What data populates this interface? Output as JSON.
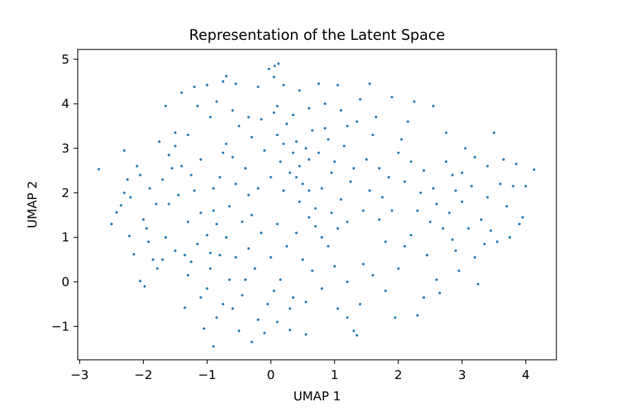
{
  "chart_data": {
    "type": "scatter",
    "title": "Representation of the Latent Space",
    "xlabel": "UMAP 1",
    "ylabel": "UMAP 2",
    "xlim": [
      -3.03,
      4.48
    ],
    "ylim": [
      -1.75,
      5.22
    ],
    "xticks": [
      -3,
      -2,
      -1,
      0,
      1,
      2,
      3,
      4
    ],
    "yticks": [
      -1,
      0,
      1,
      2,
      3,
      4,
      5
    ],
    "xtick_labels": [
      "−3",
      "−2",
      "−1",
      "0",
      "1",
      "2",
      "3",
      "4"
    ],
    "ytick_labels": [
      "−1",
      "0",
      "1",
      "2",
      "3",
      "4",
      "5"
    ],
    "grid": false,
    "legend": "none",
    "marker_color": "#1f77b4",
    "points": [
      [
        -2.7,
        2.53
      ],
      [
        4.13,
        2.52
      ],
      [
        0.12,
        4.9
      ],
      [
        0.06,
        4.85
      ],
      [
        -0.03,
        4.78
      ],
      [
        -0.7,
        4.62
      ],
      [
        -0.9,
        1.6
      ],
      [
        -0.9,
        -1.45
      ],
      [
        -2.5,
        1.3
      ],
      [
        -2.42,
        1.56
      ],
      [
        -2.35,
        1.72
      ],
      [
        -2.3,
        2.0
      ],
      [
        -2.25,
        2.3
      ],
      [
        -2.22,
        1.03
      ],
      [
        -2.15,
        0.62
      ],
      [
        -2.05,
        0.02
      ],
      [
        -1.98,
        -0.1
      ],
      [
        -2.0,
        1.4
      ],
      [
        -1.92,
        0.9
      ],
      [
        -1.85,
        0.5
      ],
      [
        -1.78,
        0.3
      ],
      [
        -1.7,
        0.5
      ],
      [
        -1.65,
        3.95
      ],
      [
        -1.6,
        1.75
      ],
      [
        -1.5,
        3.35
      ],
      [
        -1.4,
        4.25
      ],
      [
        -1.35,
        0.6
      ],
      [
        -1.3,
        0.15
      ],
      [
        -1.35,
        -0.58
      ],
      [
        -1.2,
        4.38
      ],
      [
        -1.15,
        0.85
      ],
      [
        -1.1,
        -0.35
      ],
      [
        -1.05,
        -1.05
      ],
      [
        -1.0,
        4.42
      ],
      [
        -0.95,
        0.3
      ],
      [
        -0.85,
        -0.8
      ],
      [
        -0.8,
        0.6
      ],
      [
        -0.75,
        4.5
      ],
      [
        -0.6,
        -0.6
      ],
      [
        -0.55,
        4.45
      ],
      [
        -0.5,
        -1.1
      ],
      [
        -0.4,
        0.05
      ],
      [
        -0.3,
        -1.35
      ],
      [
        -0.2,
        4.38
      ],
      [
        -0.1,
        -1.15
      ],
      [
        0.05,
        4.6
      ],
      [
        0.1,
        -0.9
      ],
      [
        0.2,
        4.42
      ],
      [
        0.3,
        -1.08
      ],
      [
        0.45,
        4.3
      ],
      [
        0.55,
        -1.18
      ],
      [
        0.75,
        4.45
      ],
      [
        0.9,
        0.8
      ],
      [
        1.05,
        4.42
      ],
      [
        1.2,
        -0.8
      ],
      [
        1.3,
        -1.1
      ],
      [
        1.35,
        -1.2
      ],
      [
        1.4,
        4.1
      ],
      [
        1.45,
        0.4
      ],
      [
        1.55,
        4.45
      ],
      [
        1.65,
        3.7
      ],
      [
        1.7,
        1.4
      ],
      [
        1.8,
        -0.2
      ],
      [
        1.9,
        4.15
      ],
      [
        1.95,
        -0.8
      ],
      [
        2.0,
        2.9
      ],
      [
        2.1,
        0.8
      ],
      [
        2.15,
        3.6
      ],
      [
        2.25,
        4.05
      ],
      [
        2.3,
        -0.75
      ],
      [
        2.4,
        2.5
      ],
      [
        2.45,
        0.6
      ],
      [
        2.55,
        3.95
      ],
      [
        2.6,
        1.75
      ],
      [
        2.65,
        -0.25
      ],
      [
        2.75,
        3.35
      ],
      [
        2.85,
        2.4
      ],
      [
        2.9,
        0.7
      ],
      [
        3.0,
        1.8
      ],
      [
        3.05,
        3.0
      ],
      [
        3.15,
        2.15
      ],
      [
        3.25,
        -0.05
      ],
      [
        3.3,
        1.4
      ],
      [
        3.4,
        2.6
      ],
      [
        3.45,
        1.15
      ],
      [
        3.5,
        3.35
      ],
      [
        3.55,
        0.9
      ],
      [
        3.6,
        2.2
      ],
      [
        3.65,
        2.75
      ],
      [
        3.7,
        1.7
      ],
      [
        3.75,
        1.0
      ],
      [
        3.8,
        2.15
      ],
      [
        3.85,
        2.65
      ],
      [
        3.9,
        1.3
      ],
      [
        3.95,
        1.45
      ],
      [
        4.0,
        2.15
      ],
      [
        2.95,
        0.25
      ],
      [
        3.2,
        0.55
      ],
      [
        2.35,
        2.0
      ],
      [
        2.5,
        1.35
      ],
      [
        2.7,
        1.2
      ],
      [
        2.85,
        0.95
      ],
      [
        2.2,
        2.7
      ],
      [
        2.05,
        3.2
      ],
      [
        1.85,
        2.35
      ],
      [
        1.75,
        1.9
      ],
      [
        1.6,
        3.3
      ],
      [
        1.5,
        2.75
      ],
      [
        1.45,
        1.6
      ],
      [
        1.25,
        2.25
      ],
      [
        1.15,
        3.05
      ],
      [
        1.05,
        1.2
      ],
      [
        0.95,
        2.45
      ],
      [
        0.85,
        3.45
      ],
      [
        0.7,
        1.65
      ],
      [
        0.65,
        0.25
      ],
      [
        0.6,
        2.05
      ],
      [
        0.5,
        0.5
      ],
      [
        0.4,
        1.1
      ],
      [
        0.35,
        -0.35
      ],
      [
        0.25,
        0.8
      ],
      [
        0.15,
        0.05
      ],
      [
        0.0,
        0.55
      ],
      [
        -0.05,
        -0.5
      ],
      [
        -0.15,
        1.1
      ],
      [
        -0.25,
        0.3
      ],
      [
        -0.35,
        0.75
      ],
      [
        -0.45,
        1.35
      ],
      [
        -0.55,
        0.55
      ],
      [
        -0.65,
        0.05
      ],
      [
        -0.7,
        1.0
      ],
      [
        -0.85,
        1.3
      ],
      [
        -1.0,
        1.05
      ],
      [
        -1.1,
        1.55
      ],
      [
        -1.2,
        2.05
      ],
      [
        -1.3,
        1.35
      ],
      [
        -1.45,
        1.95
      ],
      [
        -1.55,
        2.55
      ],
      [
        -1.7,
        2.3
      ],
      [
        -1.8,
        1.75
      ],
      [
        -1.9,
        2.1
      ],
      [
        -2.1,
        2.6
      ],
      [
        -2.2,
        1.9
      ],
      [
        -1.75,
        3.15
      ],
      [
        -1.6,
        2.85
      ],
      [
        -1.3,
        3.3
      ],
      [
        -1.1,
        2.75
      ],
      [
        -0.95,
        3.7
      ],
      [
        -0.8,
        2.35
      ],
      [
        -0.7,
        3.1
      ],
      [
        -0.6,
        2.8
      ],
      [
        -0.5,
        3.5
      ],
      [
        -0.4,
        2.55
      ],
      [
        -0.3,
        3.25
      ],
      [
        -0.2,
        2.1
      ],
      [
        -0.1,
        2.95
      ],
      [
        0.0,
        2.35
      ],
      [
        0.1,
        3.3
      ],
      [
        0.15,
        2.7
      ],
      [
        0.2,
        2.05
      ],
      [
        0.25,
        3.55
      ],
      [
        0.3,
        2.45
      ],
      [
        0.35,
        2.9
      ],
      [
        0.4,
        3.15
      ],
      [
        0.45,
        2.6
      ],
      [
        0.5,
        2.2
      ],
      [
        0.55,
        3.0
      ],
      [
        0.6,
        2.75
      ],
      [
        0.65,
        3.4
      ],
      [
        0.75,
        2.9
      ],
      [
        0.8,
        2.1
      ],
      [
        0.9,
        3.2
      ],
      [
        1.0,
        2.7
      ],
      [
        1.1,
        1.85
      ],
      [
        1.2,
        3.5
      ],
      [
        1.3,
        2.55
      ],
      [
        -1.4,
        2.6
      ],
      [
        -1.5,
        3.05
      ],
      [
        -1.25,
        2.4
      ],
      [
        -0.9,
        2.1
      ],
      [
        -0.75,
        2.9
      ],
      [
        -0.55,
        2.2
      ],
      [
        -0.35,
        1.95
      ],
      [
        -0.15,
        3.65
      ],
      [
        0.05,
        3.8
      ],
      [
        0.2,
        3.1
      ],
      [
        0.4,
        2.35
      ],
      [
        0.6,
        1.45
      ],
      [
        0.8,
        1.0
      ],
      [
        1.0,
        0.35
      ],
      [
        1.2,
        0.0
      ],
      [
        1.4,
        -0.5
      ],
      [
        1.6,
        0.15
      ],
      [
        1.8,
        0.9
      ],
      [
        2.0,
        0.3
      ],
      [
        2.2,
        1.05
      ],
      [
        2.4,
        -0.35
      ],
      [
        2.6,
        0.05
      ],
      [
        2.8,
        1.55
      ],
      [
        3.0,
        2.45
      ],
      [
        3.2,
        2.8
      ],
      [
        3.4,
        1.9
      ],
      [
        -1.0,
        -0.15
      ],
      [
        -0.75,
        -0.5
      ],
      [
        -0.45,
        -0.3
      ],
      [
        -0.2,
        -0.85
      ],
      [
        0.05,
        -0.2
      ],
      [
        0.3,
        -0.6
      ],
      [
        0.55,
        -0.45
      ],
      [
        0.8,
        -0.15
      ],
      [
        1.05,
        -0.6
      ],
      [
        -1.15,
        3.95
      ],
      [
        -0.85,
        4.05
      ],
      [
        -0.6,
        3.85
      ],
      [
        -0.35,
        3.7
      ],
      [
        0.1,
        3.95
      ],
      [
        0.35,
        3.75
      ],
      [
        0.6,
        3.9
      ],
      [
        0.85,
        4.0
      ],
      [
        1.1,
        3.85
      ],
      [
        1.35,
        3.6
      ],
      [
        -2.3,
        2.95
      ],
      [
        -2.05,
        2.4
      ],
      [
        -1.95,
        1.2
      ],
      [
        -1.65,
        1.0
      ],
      [
        -1.5,
        0.7
      ],
      [
        -1.25,
        0.45
      ],
      [
        -0.95,
        0.65
      ],
      [
        -0.65,
        1.7
      ],
      [
        -0.3,
        1.5
      ],
      [
        0.1,
        1.3
      ],
      [
        0.45,
        1.8
      ],
      [
        0.7,
        1.25
      ],
      [
        0.95,
        1.55
      ],
      [
        1.2,
        1.35
      ],
      [
        1.55,
        2.05
      ],
      [
        1.7,
        2.55
      ],
      [
        1.9,
        1.6
      ],
      [
        2.1,
        2.25
      ],
      [
        2.3,
        1.6
      ],
      [
        2.55,
        2.1
      ],
      [
        2.75,
        2.7
      ],
      [
        2.9,
        2.05
      ],
      [
        3.1,
        1.2
      ],
      [
        3.35,
        0.85
      ]
    ]
  }
}
